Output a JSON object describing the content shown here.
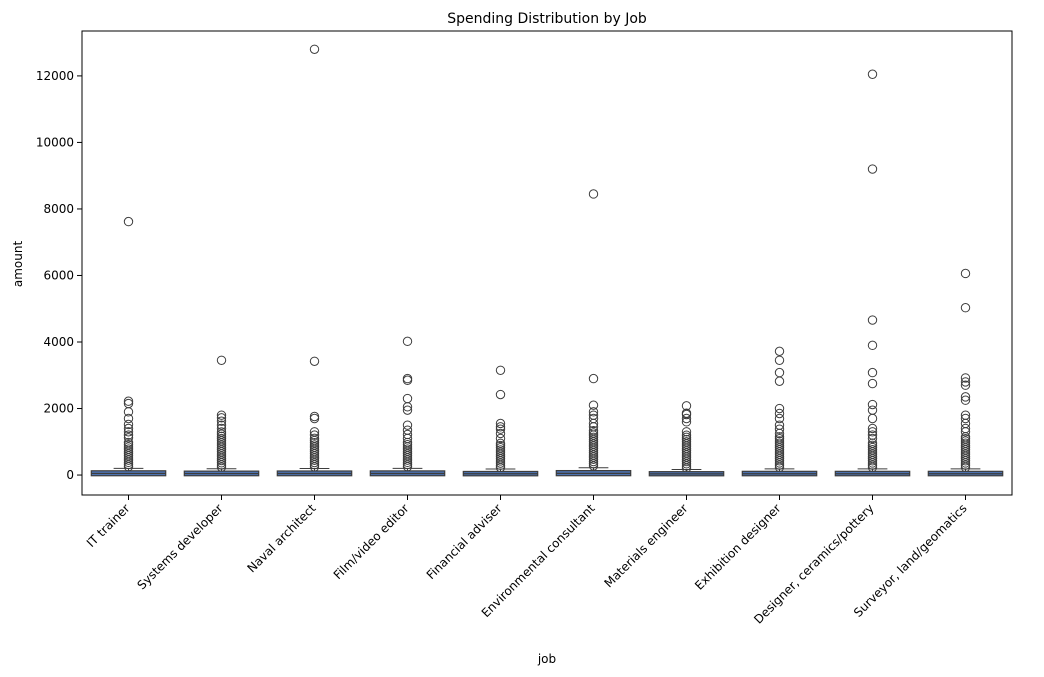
{
  "chart_data": {
    "type": "box",
    "title": "Spending Distribution by Job",
    "xlabel": "job",
    "ylabel": "amount",
    "ylim": [
      -600,
      13350
    ],
    "yticks": [
      0,
      2000,
      4000,
      6000,
      8000,
      10000,
      12000
    ],
    "ytick_labels": [
      "0",
      "2000",
      "4000",
      "6000",
      "8000",
      "10000",
      "12000"
    ],
    "grid": false,
    "legend": "none",
    "box_color": "#4c72b0",
    "categories": [
      "IT trainer",
      "Systems developer",
      "Naval architect",
      "Film/video editor",
      "Financial adviser",
      "Environmental consultant",
      "Materials engineer",
      "Exhibition designer",
      "Designer, ceramics/pottery",
      "Surveyor, land/geomatics"
    ],
    "boxes": [
      {
        "q1": 9,
        "median": 48,
        "q3": 98,
        "whisker_low": 1,
        "whisker_high": 200,
        "dense_outliers_max": 1000,
        "outliers": [
          1120,
          1200,
          1300,
          1400,
          1520,
          1700,
          1900,
          2150,
          2220,
          7620
        ]
      },
      {
        "q1": 9,
        "median": 45,
        "q3": 88,
        "whisker_low": 1,
        "whisker_high": 190,
        "dense_outliers_max": 1350,
        "outliers": [
          1400,
          1500,
          1620,
          1720,
          1800,
          3450
        ]
      },
      {
        "q1": 9,
        "median": 46,
        "q3": 92,
        "whisker_low": 1,
        "whisker_high": 195,
        "dense_outliers_max": 1150,
        "outliers": [
          1200,
          1300,
          1700,
          1760,
          3420,
          12800
        ]
      },
      {
        "q1": 9,
        "median": 47,
        "q3": 95,
        "whisker_low": 1,
        "whisker_high": 200,
        "dense_outliers_max": 1000,
        "outliers": [
          1100,
          1220,
          1350,
          1500,
          1950,
          2050,
          2300,
          2850,
          2900,
          4020
        ]
      },
      {
        "q1": 7,
        "median": 38,
        "q3": 78,
        "whisker_low": 1,
        "whisker_high": 180,
        "dense_outliers_max": 1000,
        "outliers": [
          1100,
          1250,
          1380,
          1450,
          1550,
          2420,
          3150
        ]
      },
      {
        "q1": 10,
        "median": 50,
        "q3": 104,
        "whisker_low": 1,
        "whisker_high": 220,
        "dense_outliers_max": 1350,
        "outliers": [
          1450,
          1550,
          1700,
          1800,
          1900,
          2100,
          2900,
          8450
        ]
      },
      {
        "q1": 7,
        "median": 35,
        "q3": 72,
        "whisker_low": 1,
        "whisker_high": 165,
        "dense_outliers_max": 1250,
        "outliers": [
          1300,
          1600,
          1700,
          1820,
          1860,
          2080
        ]
      },
      {
        "q1": 8,
        "median": 40,
        "q3": 82,
        "whisker_low": 1,
        "whisker_high": 185,
        "dense_outliers_max": 1100,
        "outliers": [
          1150,
          1250,
          1380,
          1500,
          1700,
          1850,
          2000,
          2820,
          3080,
          3450,
          3720
        ]
      },
      {
        "q1": 8,
        "median": 40,
        "q3": 82,
        "whisker_low": 1,
        "whisker_high": 185,
        "dense_outliers_max": 1000,
        "outliers": [
          1100,
          1200,
          1300,
          1400,
          1700,
          1950,
          2120,
          2750,
          3080,
          3900,
          4660,
          9200,
          12050
        ]
      },
      {
        "q1": 8,
        "median": 40,
        "q3": 82,
        "whisker_low": 1,
        "whisker_high": 185,
        "dense_outliers_max": 1100,
        "outliers": [
          1150,
          1300,
          1400,
          1550,
          1700,
          1800,
          2250,
          2350,
          2700,
          2800,
          2920,
          5030,
          6060
        ]
      }
    ]
  }
}
